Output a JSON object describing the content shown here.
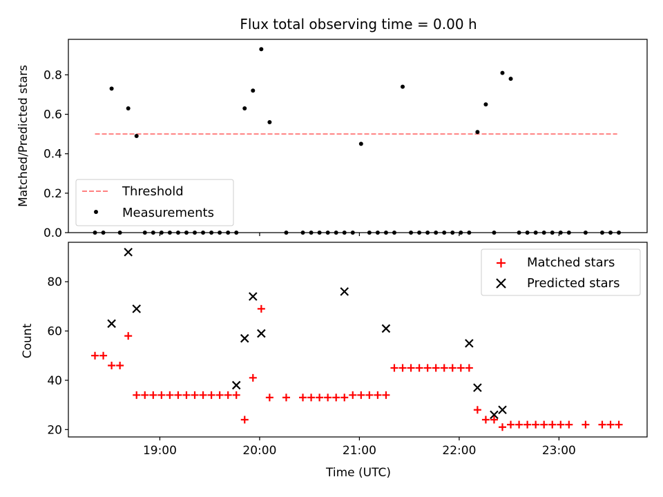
{
  "chart_data": [
    {
      "type": "scatter",
      "title": "Flux total observing time = 0.00 h",
      "xlabel": "",
      "ylabel": "Matched/Predicted stars",
      "xlim": [
        "18:05",
        "23:53"
      ],
      "ylim": [
        0,
        0.98
      ],
      "yticks": [
        0.0,
        0.2,
        0.4,
        0.6,
        0.8
      ],
      "ytick_labels": [
        "0.0",
        "0.2",
        "0.4",
        "0.6",
        "0.8"
      ],
      "legend": {
        "placement": "lower-left",
        "entries": [
          "Threshold",
          "Measurements"
        ]
      },
      "threshold": {
        "name": "Threshold",
        "y": 0.5,
        "x_range": [
          "18:21",
          "23:35"
        ],
        "color": "#ff8080",
        "style": "dashed"
      },
      "series": [
        {
          "name": "Measurements",
          "marker": "dot",
          "color": "#000000",
          "x": [
            "18:21",
            "18:26",
            "18:31",
            "18:36",
            "18:41",
            "18:46",
            "18:51",
            "18:56",
            "19:01",
            "19:06",
            "19:11",
            "19:16",
            "19:21",
            "19:26",
            "19:31",
            "19:36",
            "19:41",
            "19:46",
            "19:51",
            "19:56",
            "20:01",
            "20:06",
            "20:16",
            "20:26",
            "20:31",
            "20:36",
            "20:41",
            "20:46",
            "20:51",
            "20:56",
            "21:01",
            "21:06",
            "21:11",
            "21:16",
            "21:21",
            "21:26",
            "21:31",
            "21:36",
            "21:41",
            "21:46",
            "21:51",
            "21:56",
            "22:01",
            "22:06",
            "22:11",
            "22:16",
            "22:21",
            "22:26",
            "22:31",
            "22:36",
            "22:41",
            "22:46",
            "22:51",
            "22:56",
            "23:01",
            "23:06",
            "23:16",
            "23:26",
            "23:31",
            "23:36"
          ],
          "y": [
            0,
            0,
            0.73,
            0,
            0.63,
            0.49,
            0,
            0,
            0,
            0,
            0,
            0,
            0,
            0,
            0,
            0,
            0,
            0,
            0.63,
            0.72,
            0.93,
            0.56,
            0,
            0,
            0,
            0,
            0,
            0,
            0,
            0,
            0.45,
            0,
            0,
            0,
            0,
            0.74,
            0,
            0,
            0,
            0,
            0,
            0,
            0,
            0,
            0.51,
            0.65,
            0,
            0.81,
            0.78,
            0,
            0,
            0,
            0,
            0,
            0,
            0,
            0,
            0,
            0,
            0
          ]
        }
      ]
    },
    {
      "type": "scatter",
      "title": "",
      "xlabel": "Time (UTC)",
      "ylabel": "Count",
      "xlim": [
        "18:05",
        "23:53"
      ],
      "ylim": [
        17,
        96
      ],
      "xticks": [
        "19:00",
        "20:00",
        "21:00",
        "22:00",
        "23:00"
      ],
      "yticks": [
        20,
        40,
        60,
        80
      ],
      "ytick_labels": [
        "20",
        "40",
        "60",
        "80"
      ],
      "legend": {
        "placement": "top-right",
        "entries": [
          "Matched stars",
          "Predicted stars"
        ]
      },
      "series": [
        {
          "name": "Matched stars",
          "marker": "plus",
          "color": "#ff0000",
          "x": [
            "18:21",
            "18:26",
            "18:31",
            "18:36",
            "18:41",
            "18:46",
            "18:51",
            "18:56",
            "19:01",
            "19:06",
            "19:11",
            "19:16",
            "19:21",
            "19:26",
            "19:31",
            "19:36",
            "19:41",
            "19:46",
            "19:51",
            "19:56",
            "20:01",
            "20:06",
            "20:16",
            "20:26",
            "20:31",
            "20:36",
            "20:41",
            "20:46",
            "20:51",
            "20:56",
            "21:01",
            "21:06",
            "21:11",
            "21:16",
            "21:21",
            "21:26",
            "21:31",
            "21:36",
            "21:41",
            "21:46",
            "21:51",
            "21:56",
            "22:01",
            "22:06",
            "22:11",
            "22:16",
            "22:21",
            "22:26",
            "22:31",
            "22:36",
            "22:41",
            "22:46",
            "22:51",
            "22:56",
            "23:01",
            "23:06",
            "23:16",
            "23:26",
            "23:31",
            "23:36"
          ],
          "y": [
            50,
            50,
            46,
            46,
            58,
            34,
            34,
            34,
            34,
            34,
            34,
            34,
            34,
            34,
            34,
            34,
            34,
            34,
            24,
            41,
            69,
            33,
            33,
            33,
            33,
            33,
            33,
            33,
            33,
            34,
            34,
            34,
            34,
            34,
            45,
            45,
            45,
            45,
            45,
            45,
            45,
            45,
            45,
            45,
            28,
            24,
            24,
            21,
            22,
            22,
            22,
            22,
            22,
            22,
            22,
            22,
            22,
            22,
            22,
            22
          ]
        },
        {
          "name": "Predicted stars",
          "marker": "x",
          "color": "#000000",
          "x": [
            "18:31",
            "18:41",
            "18:46",
            "19:46",
            "19:51",
            "19:56",
            "20:01",
            "20:51",
            "21:16",
            "22:06",
            "22:11",
            "22:21",
            "22:26"
          ],
          "y": [
            63,
            92,
            69,
            38,
            57,
            74,
            59,
            76,
            61,
            55,
            37,
            26,
            28
          ]
        }
      ]
    }
  ]
}
